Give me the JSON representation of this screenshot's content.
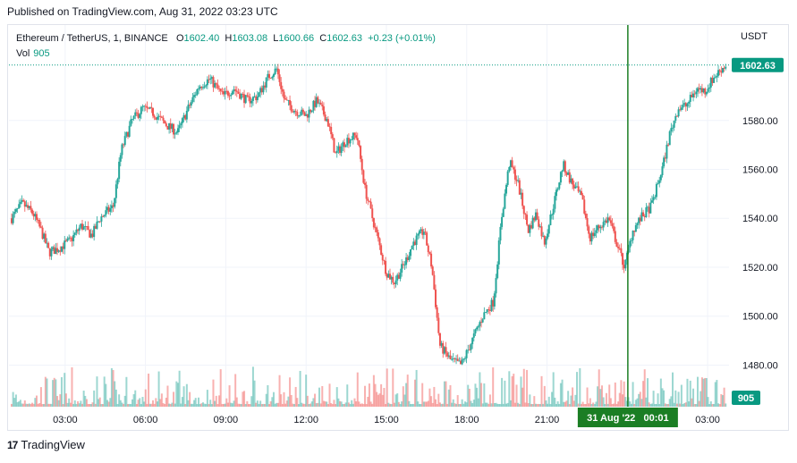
{
  "header": {
    "published": "Published on TradingView.com, Aug 31, 2022 03:23 UTC"
  },
  "legend": {
    "symbol": "Ethereum / TetherUS, 1, BINANCE",
    "open_label": "O",
    "open": "1602.40",
    "high_label": "H",
    "high": "1603.08",
    "low_label": "L",
    "low": "1600.66",
    "close_label": "C",
    "close": "1602.63",
    "change": "+0.23 (+0.01%)",
    "vol_label": "Vol",
    "vol": "905"
  },
  "currency": "USDT",
  "footer": {
    "logo": "17",
    "brand": "TradingView"
  },
  "colors": {
    "up": "#26a69a",
    "down": "#ef5350",
    "price_label": "#089981",
    "crosshair": "#1b7e24"
  },
  "chart_data": {
    "type": "candlestick",
    "title": "Ethereum / TetherUS, 1, BINANCE",
    "y_axis_label": "USDT",
    "y_ticks": [
      1480.0,
      1500.0,
      1520.0,
      1540.0,
      1560.0,
      1580.0
    ],
    "x_ticks": [
      "03:00",
      "06:00",
      "09:00",
      "12:00",
      "15:00",
      "18:00",
      "21:00",
      "03:00"
    ],
    "ylim": [
      1463,
      1619
    ],
    "xlim_hours": [
      0.9,
      27.8
    ],
    "last_price": "1602.63",
    "last_volume": "905",
    "crosshair_label": "31 Aug '22   00:01",
    "crosshair_hour": 24.02,
    "price_path": [
      [
        1.0,
        1540
      ],
      [
        1.4,
        1546
      ],
      [
        1.8,
        1542
      ],
      [
        2.1,
        1535
      ],
      [
        2.4,
        1526
      ],
      [
        2.8,
        1528
      ],
      [
        3.2,
        1531
      ],
      [
        3.6,
        1537
      ],
      [
        4.0,
        1533
      ],
      [
        4.3,
        1540
      ],
      [
        4.8,
        1545
      ],
      [
        5.1,
        1568
      ],
      [
        5.5,
        1580
      ],
      [
        5.9,
        1585
      ],
      [
        6.3,
        1583
      ],
      [
        6.8,
        1578
      ],
      [
        7.2,
        1575
      ],
      [
        7.6,
        1585
      ],
      [
        8.0,
        1594
      ],
      [
        8.4,
        1597
      ],
      [
        8.9,
        1590
      ],
      [
        9.3,
        1593
      ],
      [
        9.8,
        1588
      ],
      [
        10.2,
        1590
      ],
      [
        10.6,
        1598
      ],
      [
        10.9,
        1601
      ],
      [
        11.2,
        1588
      ],
      [
        11.6,
        1584
      ],
      [
        12.0,
        1582
      ],
      [
        12.4,
        1588
      ],
      [
        12.8,
        1580
      ],
      [
        13.1,
        1566
      ],
      [
        13.5,
        1572
      ],
      [
        13.9,
        1574
      ],
      [
        14.2,
        1552
      ],
      [
        14.6,
        1535
      ],
      [
        15.0,
        1518
      ],
      [
        15.3,
        1514
      ],
      [
        15.7,
        1522
      ],
      [
        16.0,
        1530
      ],
      [
        16.4,
        1535
      ],
      [
        16.7,
        1520
      ],
      [
        17.0,
        1488
      ],
      [
        17.4,
        1482
      ],
      [
        17.8,
        1480
      ],
      [
        18.2,
        1490
      ],
      [
        18.6,
        1500
      ],
      [
        19.0,
        1506
      ],
      [
        19.3,
        1540
      ],
      [
        19.6,
        1563
      ],
      [
        19.9,
        1555
      ],
      [
        20.3,
        1535
      ],
      [
        20.6,
        1542
      ],
      [
        20.9,
        1530
      ],
      [
        21.3,
        1548
      ],
      [
        21.6,
        1562
      ],
      [
        21.9,
        1555
      ],
      [
        22.3,
        1548
      ],
      [
        22.6,
        1532
      ],
      [
        22.9,
        1536
      ],
      [
        23.3,
        1540
      ],
      [
        23.6,
        1530
      ],
      [
        23.9,
        1520
      ],
      [
        24.2,
        1535
      ],
      [
        24.5,
        1540
      ],
      [
        24.9,
        1545
      ],
      [
        25.3,
        1560
      ],
      [
        25.6,
        1575
      ],
      [
        25.9,
        1585
      ],
      [
        26.2,
        1586
      ],
      [
        26.6,
        1593
      ],
      [
        26.9,
        1592
      ],
      [
        27.2,
        1597
      ],
      [
        27.5,
        1601
      ],
      [
        27.7,
        1602.63
      ]
    ]
  }
}
